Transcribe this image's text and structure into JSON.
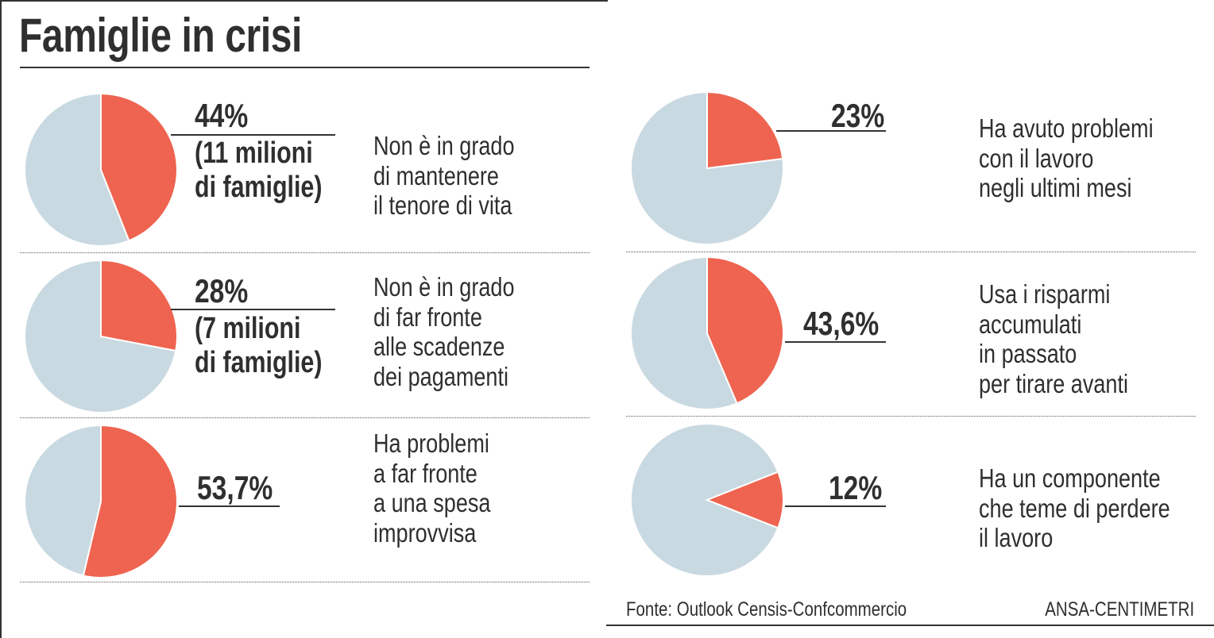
{
  "title": "Famiglie in crisi",
  "colors": {
    "highlight": "#EE6450",
    "rest": "#C9D9E1",
    "text": "#2f2f2f"
  },
  "chart_data": {
    "type": "pie",
    "title": "Famiglie in crisi",
    "charts": [
      {
        "value": 44,
        "label": "44%",
        "sublabel": [
          "(11 milioni",
          "di famiglie)"
        ],
        "description": [
          "Non è in grado",
          "di mantenere",
          "il tenore di vita"
        ],
        "slice_orientation": "top-clockwise"
      },
      {
        "value": 28,
        "label": "28%",
        "sublabel": [
          "(7 milioni",
          "di famiglie)"
        ],
        "description": [
          "Non è in grado",
          "di far fronte",
          "alle scadenze",
          "dei pagamenti"
        ],
        "slice_orientation": "top-clockwise"
      },
      {
        "value": 53.7,
        "label": "53,7%",
        "sublabel": [],
        "description": [
          "Ha problemi",
          "a far fronte",
          "a una spesa",
          "improvvisa"
        ],
        "slice_orientation": "top-clockwise"
      },
      {
        "value": 23,
        "label": "23%",
        "sublabel": [],
        "description": [
          "Ha avuto problemi",
          "con il lavoro",
          "negli ultimi mesi"
        ],
        "slice_orientation": "top-clockwise"
      },
      {
        "value": 43.6,
        "label": "43,6%",
        "sublabel": [],
        "description": [
          "Usa i risparmi",
          "accumulati",
          "in passato",
          "per tirare avanti"
        ],
        "slice_orientation": "top-clockwise"
      },
      {
        "value": 12,
        "label": "12%",
        "sublabel": [],
        "description": [
          "Ha un componente",
          "che teme di perdere",
          "il lavoro"
        ],
        "slice_orientation": "right-centered"
      }
    ]
  },
  "footer": {
    "source": "Fonte: Outlook Censis-Confcommercio",
    "credit": "ANSA-CENTIMETRI"
  }
}
